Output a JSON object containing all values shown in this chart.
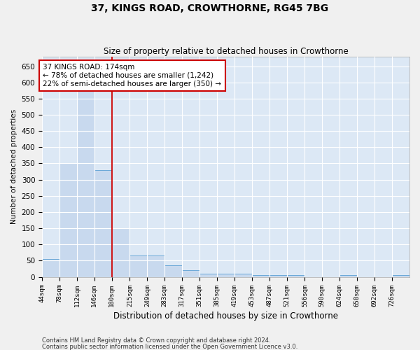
{
  "title": "37, KINGS ROAD, CROWTHORNE, RG45 7BG",
  "subtitle": "Size of property relative to detached houses in Crowthorne",
  "xlabel": "Distribution of detached houses by size in Crowthorne",
  "ylabel": "Number of detached properties",
  "footnote1": "Contains HM Land Registry data © Crown copyright and database right 2024.",
  "footnote2": "Contains public sector information licensed under the Open Government Licence v3.0.",
  "bar_color": "#c8d9ee",
  "bar_edge_color": "#5a9fd4",
  "background_color": "#dce8f5",
  "annotation_line1": "37 KINGS ROAD: 174sqm",
  "annotation_line2": "← 78% of detached houses are smaller (1,242)",
  "annotation_line3": "22% of semi-detached houses are larger (350) →",
  "categories": [
    "44sqm",
    "78sqm",
    "112sqm",
    "146sqm",
    "180sqm",
    "215sqm",
    "249sqm",
    "283sqm",
    "317sqm",
    "351sqm",
    "385sqm",
    "419sqm",
    "453sqm",
    "487sqm",
    "521sqm",
    "556sqm",
    "590sqm",
    "624sqm",
    "658sqm",
    "692sqm",
    "726sqm"
  ],
  "bin_edges": [
    44,
    78,
    112,
    146,
    180,
    215,
    249,
    283,
    317,
    351,
    385,
    419,
    453,
    487,
    521,
    556,
    590,
    624,
    658,
    692,
    726,
    760
  ],
  "values": [
    55,
    350,
    600,
    330,
    150,
    65,
    65,
    35,
    20,
    10,
    10,
    10,
    5,
    5,
    5,
    0,
    0,
    5,
    0,
    0,
    5
  ],
  "ylim": [
    0,
    680
  ],
  "yticks": [
    0,
    50,
    100,
    150,
    200,
    250,
    300,
    350,
    400,
    450,
    500,
    550,
    600,
    650
  ],
  "vline_color": "#cc0000",
  "annotation_box_color": "#cc0000",
  "grid_color": "#ffffff",
  "fig_bg": "#f0f0f0"
}
